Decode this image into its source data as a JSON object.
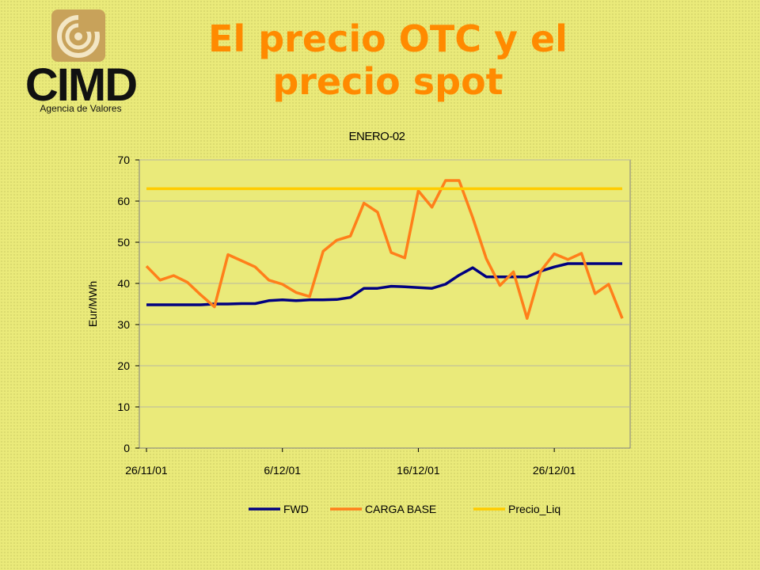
{
  "slide": {
    "title": "El precio OTC y el precio spot"
  },
  "logo": {
    "name": "CIMD",
    "subtitle": "Agencia de Valores",
    "icon": "spiral-logo-icon"
  },
  "colors": {
    "title": "#ff8a00",
    "fwd": "#000080",
    "carga_base": "#ff7f1a",
    "precio_liq": "#ffcc00",
    "plot_bg": "#eaea7a"
  },
  "chart_data": {
    "type": "line",
    "title": "ENERO-02",
    "xlabel": "",
    "ylabel": "Eur/MWh",
    "ylim": [
      0,
      70
    ],
    "yticks": [
      0,
      10,
      20,
      30,
      40,
      50,
      60,
      70
    ],
    "x_range": [
      "26/11/01",
      "31/12/01"
    ],
    "xticks": [
      "26/11/01",
      "6/12/01",
      "16/12/01",
      "26/12/01"
    ],
    "grid": "horizontal",
    "legend_position": "bottom",
    "x": [
      "26/11/01",
      "27/11/01",
      "28/11/01",
      "29/11/01",
      "30/11/01",
      "1/12/01",
      "2/12/01",
      "3/12/01",
      "4/12/01",
      "5/12/01",
      "6/12/01",
      "7/12/01",
      "8/12/01",
      "9/12/01",
      "10/12/01",
      "11/12/01",
      "12/12/01",
      "13/12/01",
      "14/12/01",
      "15/12/01",
      "16/12/01",
      "17/12/01",
      "18/12/01",
      "19/12/01",
      "20/12/01",
      "21/12/01",
      "22/12/01",
      "23/12/01",
      "24/12/01",
      "25/12/01",
      "26/12/01",
      "27/12/01",
      "28/12/01",
      "29/12/01",
      "30/12/01",
      "31/12/01"
    ],
    "series": [
      {
        "name": "FWD",
        "values": [
          34.8,
          34.8,
          34.8,
          34.8,
          34.8,
          35.0,
          35.0,
          35.1,
          35.1,
          35.8,
          36.0,
          35.8,
          36.0,
          36.0,
          36.1,
          36.6,
          38.8,
          38.8,
          39.3,
          39.2,
          39.0,
          38.8,
          39.8,
          42.0,
          43.8,
          41.6,
          41.6,
          41.6,
          41.6,
          43.0,
          44.0,
          44.8,
          44.8,
          44.8,
          44.8,
          44.8
        ]
      },
      {
        "name": "CARGA BASE",
        "values": [
          44.2,
          40.8,
          41.9,
          40.3,
          37.2,
          34.3,
          47.0,
          45.5,
          44.0,
          40.8,
          39.8,
          37.8,
          36.8,
          47.8,
          50.5,
          51.5,
          59.5,
          57.3,
          47.5,
          46.2,
          62.5,
          58.5,
          65.0,
          65.0,
          56.0,
          46.0,
          39.5,
          42.8,
          31.5,
          43.0,
          47.2,
          45.8,
          47.3,
          37.5,
          39.8,
          31.5
        ]
      },
      {
        "name": "Precio_Liq",
        "values": [
          63,
          63,
          63,
          63,
          63,
          63,
          63,
          63,
          63,
          63,
          63,
          63,
          63,
          63,
          63,
          63,
          63,
          63,
          63,
          63,
          63,
          63,
          63,
          63,
          63,
          63,
          63,
          63,
          63,
          63,
          63,
          63,
          63,
          63,
          63,
          63
        ]
      }
    ]
  }
}
